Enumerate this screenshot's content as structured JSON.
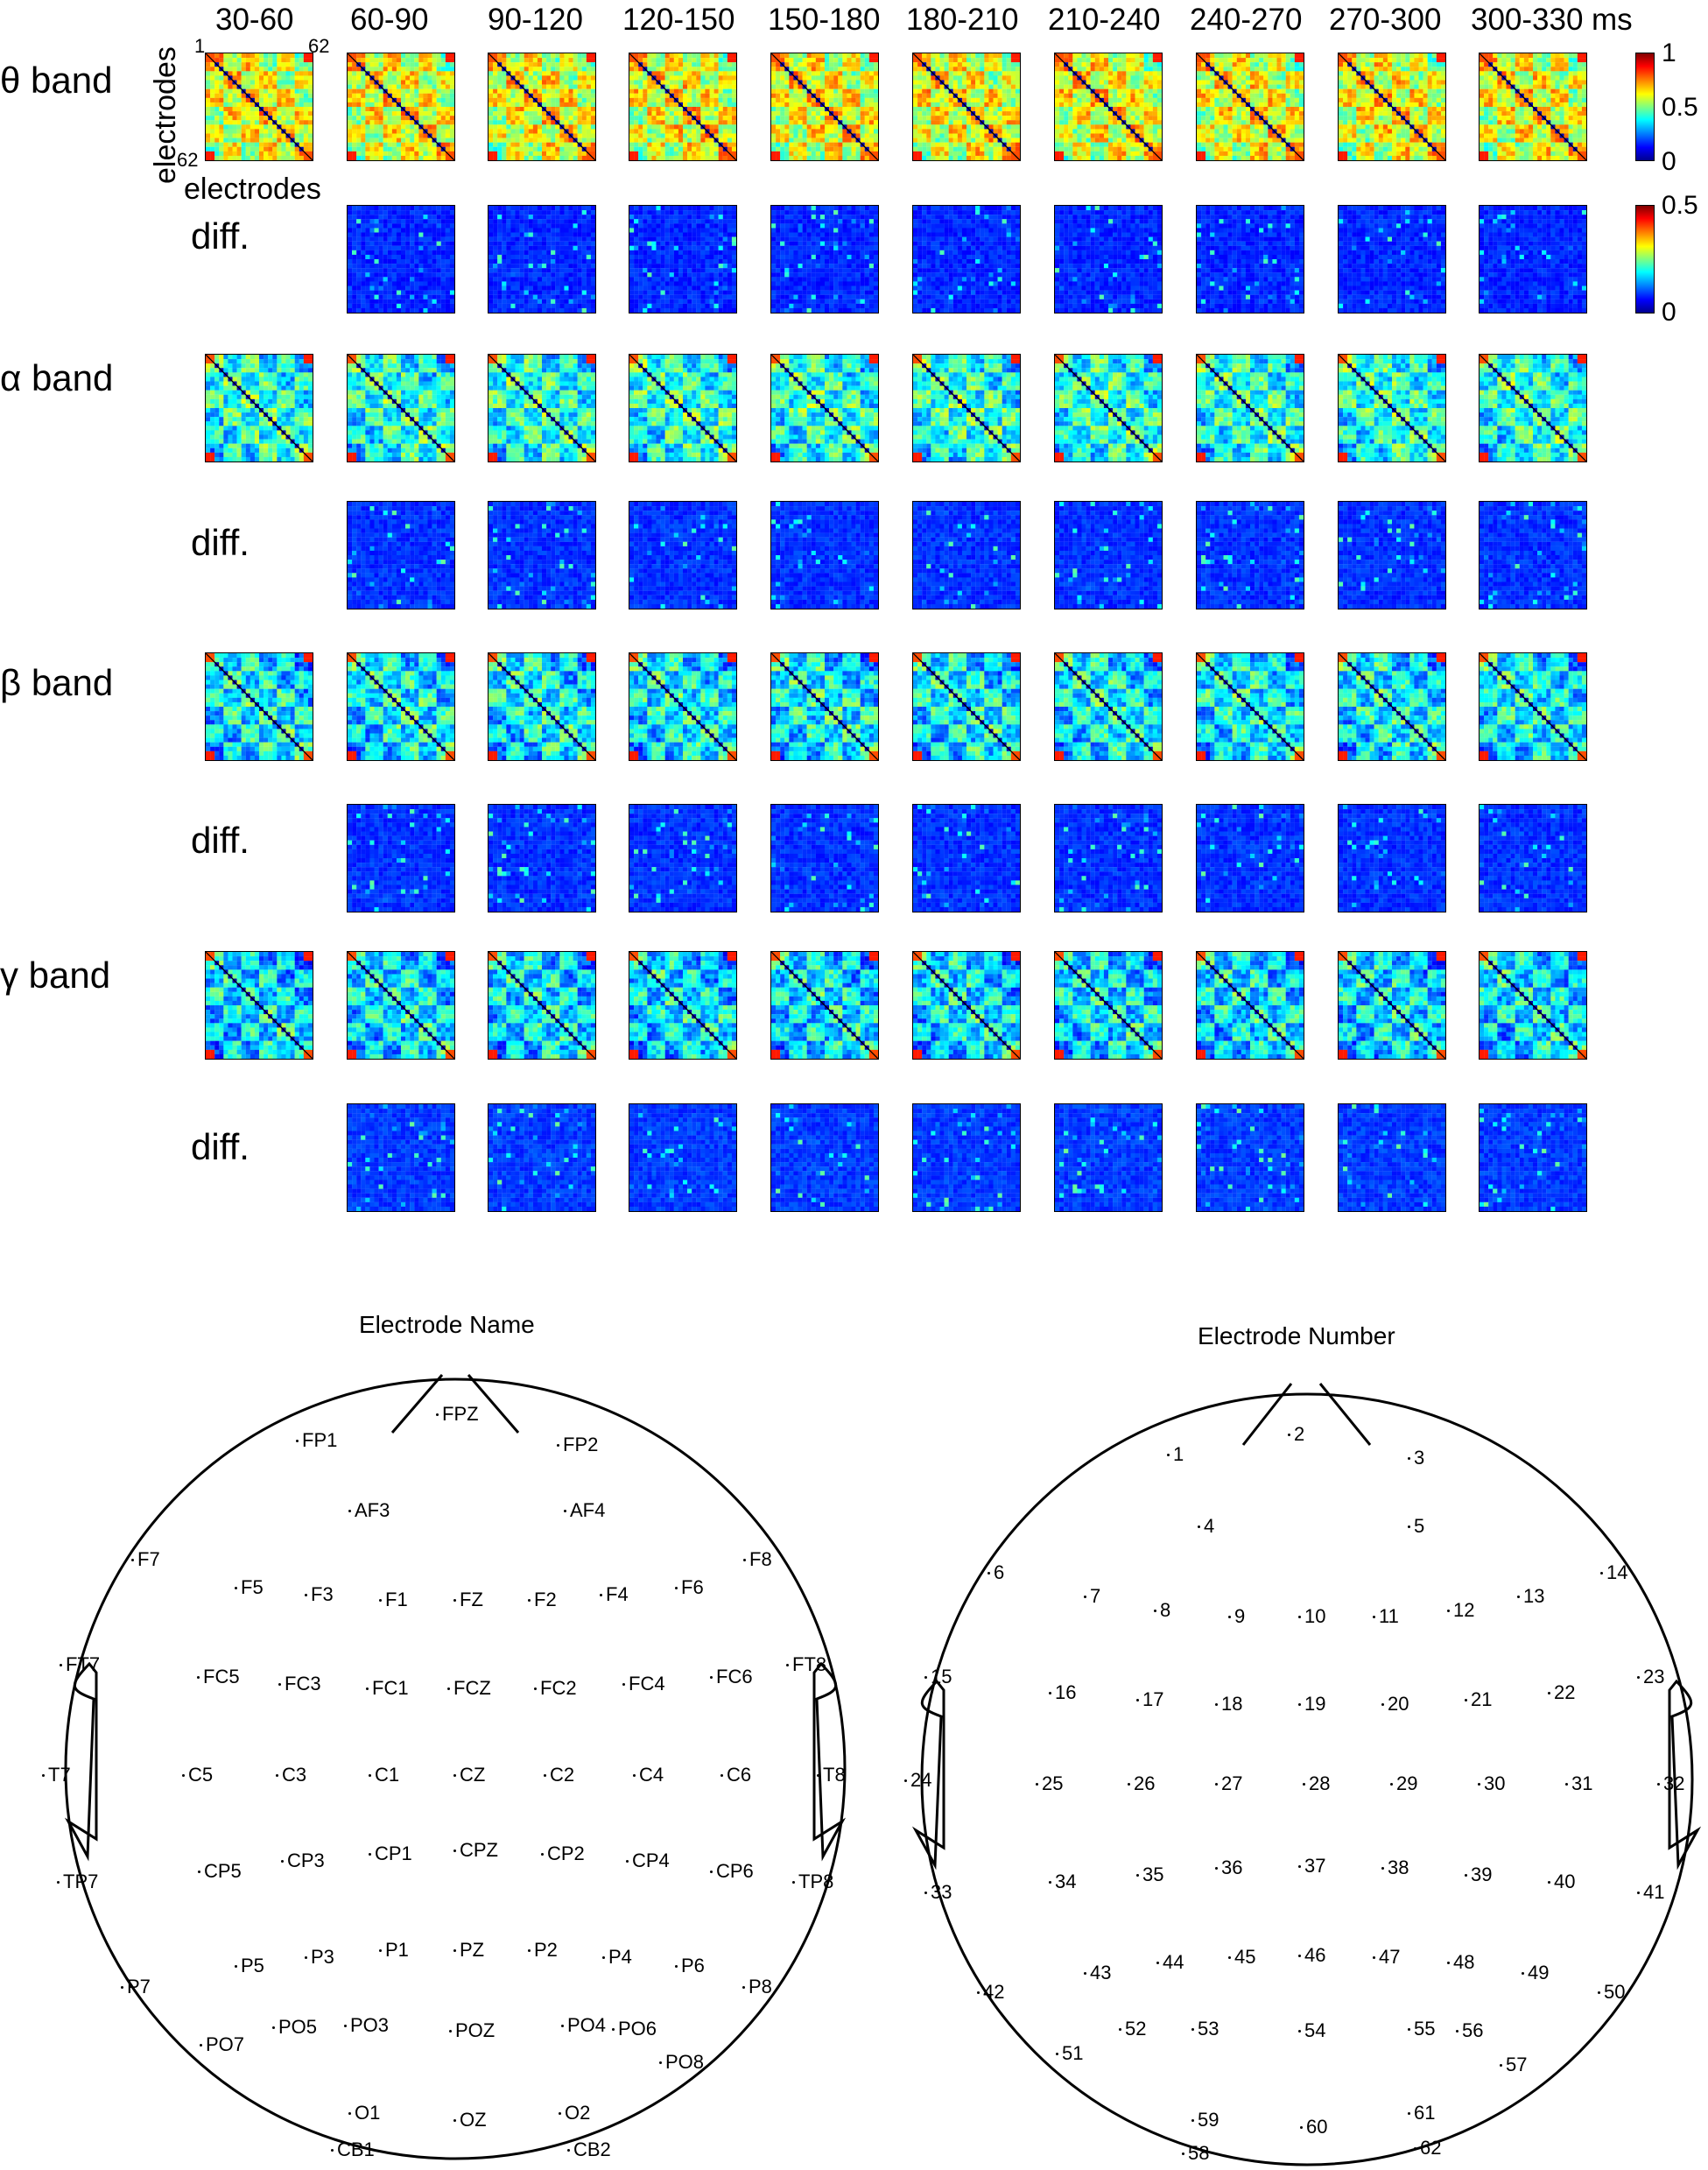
{
  "top_panel": {
    "time_windows": [
      "30-60",
      "60-90",
      "90-120",
      "120-150",
      "150-180",
      "180-210",
      "210-240",
      "240-270",
      "270-300",
      "300-330"
    ],
    "time_unit": "ms",
    "axis_label": "electrodes",
    "corner_first": "1",
    "corner_last": "62",
    "colorbar_main": {
      "ticks": [
        "1",
        "0.5",
        "0"
      ]
    },
    "colorbar_diff": {
      "ticks": [
        "0.5",
        "0"
      ]
    },
    "rows": [
      {
        "label": "θ band",
        "kind": "band",
        "intensity": 0.62
      },
      {
        "label": "diff.",
        "kind": "diff",
        "intensity": 0.12
      },
      {
        "label": "α band",
        "kind": "band",
        "intensity": 0.42
      },
      {
        "label": "diff.",
        "kind": "diff",
        "intensity": 0.13
      },
      {
        "label": "β band",
        "kind": "band",
        "intensity": 0.38
      },
      {
        "label": "diff.",
        "kind": "diff",
        "intensity": 0.13
      },
      {
        "label": "γ band",
        "kind": "band",
        "intensity": 0.36
      },
      {
        "label": "diff.",
        "kind": "diff",
        "intensity": 0.14
      }
    ]
  },
  "chart_data": [
    {
      "type": "heatmap",
      "title": "",
      "xlabel": "electrodes",
      "ylabel": "electrodes",
      "x_range": [
        "1",
        "62"
      ],
      "y_range": [
        "1",
        "62"
      ],
      "columns": [
        "30-60",
        "60-90",
        "90-120",
        "120-150",
        "150-180",
        "180-210",
        "210-240",
        "240-270",
        "270-300",
        "300-330"
      ],
      "rows": [
        "θ band",
        "diff.",
        "α band",
        "diff.",
        "β band",
        "diff.",
        "γ band",
        "diff."
      ],
      "colorbar_band": [
        0,
        1
      ],
      "colorbar_diff": [
        0,
        0.5
      ]
    }
  ],
  "head_names": {
    "title": "Electrode Name",
    "electrodes": [
      "FP1",
      "FPZ",
      "FP2",
      "AF3",
      "AF4",
      "F7",
      "F5",
      "F3",
      "F1",
      "FZ",
      "F2",
      "F4",
      "F6",
      "F8",
      "FT7",
      "FC5",
      "FC3",
      "FC1",
      "FCZ",
      "FC2",
      "FC4",
      "FC6",
      "FT8",
      "T7",
      "C5",
      "C3",
      "C1",
      "CZ",
      "C2",
      "C4",
      "C6",
      "T8",
      "TP7",
      "CP5",
      "CP3",
      "CP1",
      "CPZ",
      "CP2",
      "CP4",
      "CP6",
      "TP8",
      "P7",
      "P5",
      "P3",
      "P1",
      "PZ",
      "P2",
      "P4",
      "P6",
      "P8",
      "PO7",
      "PO5",
      "PO3",
      "POZ",
      "PO4",
      "PO6",
      "PO8",
      "O1",
      "OZ",
      "O2",
      "CB1",
      "CB2"
    ]
  },
  "head_numbers": {
    "title": "Electrode Number",
    "electrodes": [
      "1",
      "2",
      "3",
      "4",
      "5",
      "6",
      "7",
      "8",
      "9",
      "10",
      "11",
      "12",
      "13",
      "14",
      "15",
      "16",
      "17",
      "18",
      "19",
      "20",
      "21",
      "22",
      "23",
      "24",
      "25",
      "26",
      "27",
      "28",
      "29",
      "30",
      "31",
      "32",
      "33",
      "34",
      "35",
      "36",
      "37",
      "38",
      "39",
      "40",
      "41",
      "42",
      "43",
      "44",
      "45",
      "46",
      "47",
      "48",
      "49",
      "50",
      "51",
      "52",
      "53",
      "54",
      "55",
      "56",
      "57",
      "58",
      "59",
      "60",
      "61",
      "62"
    ]
  }
}
